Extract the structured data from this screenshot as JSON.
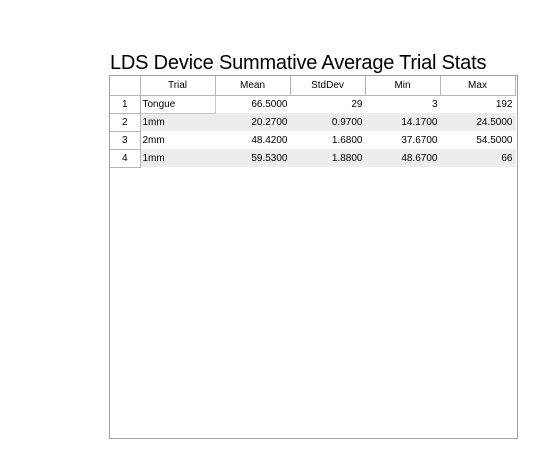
{
  "title": "LDS Device Summative Average Trial Stats",
  "table": {
    "columns": [
      "Trial",
      "Mean",
      "StdDev",
      "Min",
      "Max"
    ],
    "rows": [
      {
        "index": "1",
        "cells": [
          "Tongue",
          "66.5000",
          "29",
          "3",
          "192"
        ]
      },
      {
        "index": "2",
        "cells": [
          "1mm",
          "20.2700",
          "0.9700",
          "14.1700",
          "24.5000"
        ]
      },
      {
        "index": "3",
        "cells": [
          "2mm",
          "48.4200",
          "1.6800",
          "37.6700",
          "54.5000"
        ]
      },
      {
        "index": "4",
        "cells": [
          "1mm",
          "59.5300",
          "1.8800",
          "48.6700",
          "66"
        ]
      }
    ]
  }
}
